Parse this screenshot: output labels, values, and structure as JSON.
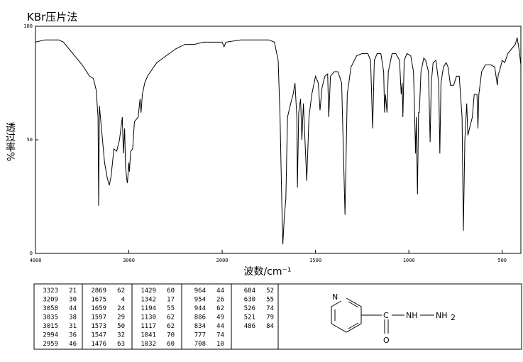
{
  "chart_data": {
    "type": "line",
    "title": "KBr压片法",
    "xlabel": "波数/cm⁻¹",
    "ylabel": "透过率%",
    "xlim": [
      4000,
      400
    ],
    "x_scale_change": 2000,
    "ylim": [
      0,
      100
    ],
    "xticks": [
      4000,
      3000,
      2000,
      1500,
      1000,
      500
    ],
    "yticks": [
      0,
      50,
      100
    ],
    "color": "#000000",
    "x": [
      4000,
      3900,
      3750,
      3700,
      3600,
      3500,
      3420,
      3380,
      3350,
      3330,
      3323,
      3315,
      3300,
      3260,
      3230,
      3209,
      3190,
      3160,
      3130,
      3100,
      3070,
      3058,
      3045,
      3035,
      3020,
      3015,
      3000,
      2994,
      2980,
      2959,
      2940,
      2900,
      2880,
      2869,
      2855,
      2830,
      2800,
      2700,
      2600,
      2500,
      2400,
      2300,
      2200,
      2100,
      2020,
      2000,
      1990,
      1980,
      1900,
      1800,
      1750,
      1720,
      1700,
      1690,
      1680,
      1675,
      1668,
      1659,
      1650,
      1630,
      1620,
      1610,
      1600,
      1597,
      1590,
      1580,
      1573,
      1565,
      1547,
      1535,
      1520,
      1500,
      1485,
      1476,
      1465,
      1450,
      1435,
      1429,
      1420,
      1400,
      1380,
      1360,
      1342,
      1330,
      1310,
      1280,
      1250,
      1220,
      1205,
      1194,
      1185,
      1170,
      1150,
      1135,
      1130,
      1125,
      1117,
      1110,
      1090,
      1070,
      1050,
      1041,
      1036,
      1032,
      1025,
      1010,
      990,
      975,
      964,
      960,
      954,
      948,
      944,
      935,
      920,
      910,
      895,
      886,
      880,
      870,
      855,
      840,
      834,
      828,
      815,
      800,
      790,
      777,
      760,
      745,
      730,
      715,
      708,
      700,
      690,
      684,
      675,
      660,
      650,
      635,
      630,
      625,
      610,
      590,
      560,
      540,
      526,
      521,
      515,
      500,
      486,
      470,
      450,
      430,
      420,
      410,
      400
    ],
    "values": [
      93,
      94,
      94,
      93,
      88,
      83,
      78,
      77,
      72,
      60,
      21,
      65,
      58,
      40,
      33,
      30,
      34,
      46,
      45,
      50,
      60,
      44,
      55,
      38,
      32,
      31,
      40,
      36,
      45,
      46,
      58,
      60,
      68,
      62,
      70,
      75,
      78,
      84,
      87,
      90,
      92,
      92,
      93,
      93,
      93,
      93,
      91,
      93,
      94,
      94,
      94,
      93,
      85,
      60,
      20,
      4,
      15,
      24,
      60,
      67,
      70,
      75,
      60,
      29,
      62,
      68,
      50,
      66,
      32,
      60,
      70,
      78,
      75,
      63,
      73,
      78,
      79,
      60,
      78,
      80,
      80,
      75,
      17,
      70,
      82,
      87,
      88,
      88,
      85,
      55,
      85,
      88,
      88,
      80,
      62,
      70,
      62,
      80,
      88,
      88,
      85,
      70,
      75,
      60,
      85,
      88,
      87,
      80,
      44,
      60,
      26,
      62,
      62,
      80,
      86,
      85,
      80,
      49,
      75,
      84,
      85,
      75,
      44,
      75,
      82,
      84,
      82,
      74,
      74,
      78,
      78,
      60,
      10,
      50,
      66,
      52,
      55,
      60,
      70,
      70,
      55,
      70,
      80,
      83,
      83,
      82,
      74,
      79,
      80,
      85,
      84,
      88,
      90,
      92,
      95,
      90,
      83
    ]
  },
  "peak_table": [
    [
      [
        3323,
        21
      ],
      [
        3209,
        30
      ],
      [
        3058,
        44
      ],
      [
        3035,
        38
      ],
      [
        3015,
        31
      ],
      [
        2994,
        36
      ],
      [
        2959,
        46
      ]
    ],
    [
      [
        2869,
        62
      ],
      [
        1675,
        4
      ],
      [
        1659,
        24
      ],
      [
        1597,
        29
      ],
      [
        1573,
        50
      ],
      [
        1547,
        32
      ],
      [
        1476,
        63
      ]
    ],
    [
      [
        1429,
        60
      ],
      [
        1342,
        17
      ],
      [
        1194,
        55
      ],
      [
        1130,
        62
      ],
      [
        1117,
        62
      ],
      [
        1041,
        70
      ],
      [
        1032,
        60
      ]
    ],
    [
      [
        964,
        44
      ],
      [
        954,
        26
      ],
      [
        944,
        62
      ],
      [
        886,
        49
      ],
      [
        834,
        44
      ],
      [
        777,
        74
      ],
      [
        708,
        10
      ]
    ],
    [
      [
        684,
        52
      ],
      [
        630,
        55
      ],
      [
        526,
        74
      ],
      [
        521,
        79
      ],
      [
        486,
        84
      ]
    ]
  ],
  "structure": {
    "ring_atom": "N",
    "carbonyl_c": "C",
    "carbonyl_o": "O",
    "amide": "NH",
    "amine": "NH",
    "amine_subscript": "2"
  }
}
